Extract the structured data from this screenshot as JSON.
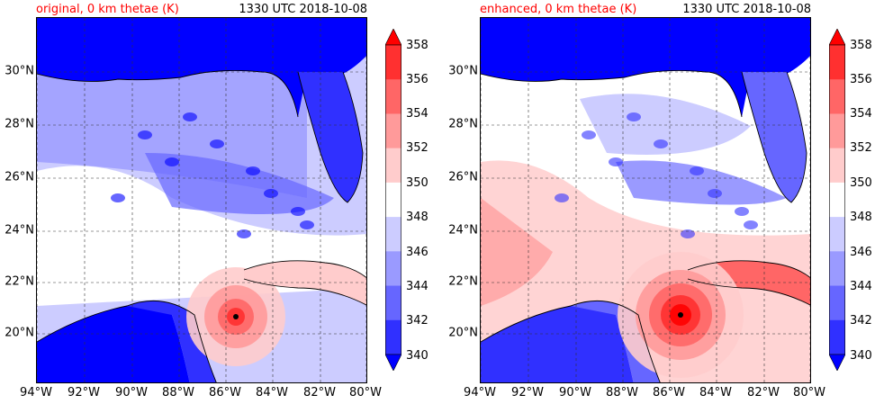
{
  "panels": [
    {
      "title_left": "original, 0 km thetae (K)",
      "title_right": "1330 UTC 2018-10-08",
      "variant": "original"
    },
    {
      "title_left": "enhanced, 0 km thetae (K)",
      "title_right": "1330 UTC 2018-10-08",
      "variant": "enhanced"
    }
  ],
  "axes": {
    "lat_labels": [
      "30°N",
      "28°N",
      "26°N",
      "24°N",
      "22°N",
      "20°N"
    ],
    "lon_labels": [
      "94°W",
      "92°W",
      "90°W",
      "88°W",
      "86°W",
      "84°W",
      "82°W",
      "80°W"
    ]
  },
  "colorbar": {
    "ticks": [
      "358",
      "356",
      "354",
      "352",
      "350",
      "348",
      "346",
      "344",
      "342",
      "340"
    ],
    "colors": [
      "#ff0000",
      "#ff3030",
      "#ff6666",
      "#ff9a9a",
      "#ffcccc",
      "#ffffff",
      "#ccccff",
      "#9a9aff",
      "#6666ff",
      "#3030ff",
      "#0000ff"
    ]
  }
}
